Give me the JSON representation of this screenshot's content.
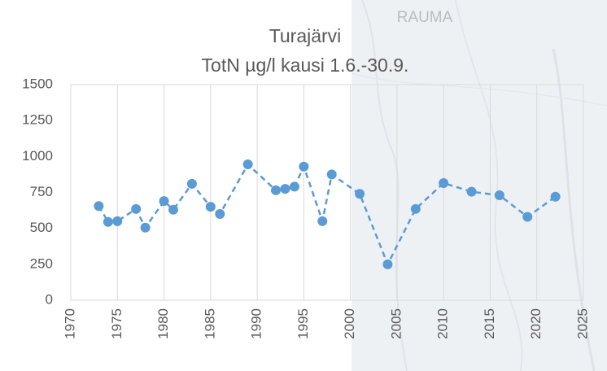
{
  "map": {
    "label": "RAUMA"
  },
  "chart_data": {
    "type": "line",
    "title": "Turajärvi",
    "subtitle": "TotN µg/l kausi 1.6.-30.9.",
    "x": [
      1973,
      1974,
      1975,
      1977,
      1978,
      1980,
      1981,
      1983,
      1985,
      1986,
      1989,
      1992,
      1993,
      1994,
      1995,
      1997,
      1998,
      2001,
      2004,
      2007,
      2010,
      2013,
      2016,
      2019,
      2022
    ],
    "series": [
      {
        "name": "TotN",
        "color": "#5b9bd5",
        "values": [
          655,
          545,
          550,
          635,
          505,
          690,
          630,
          810,
          650,
          600,
          945,
          765,
          775,
          790,
          930,
          550,
          875,
          740,
          250,
          635,
          815,
          755,
          730,
          580,
          720
        ]
      }
    ],
    "xlim": [
      1970,
      2025
    ],
    "xticks": [
      1970,
      1975,
      1980,
      1985,
      1990,
      1995,
      2000,
      2005,
      2010,
      2015,
      2020,
      2025
    ],
    "ylim": [
      0,
      1500
    ],
    "yticks": [
      0,
      250,
      500,
      750,
      1000,
      1250,
      1500
    ],
    "grid": "x",
    "line_style": "dashed"
  }
}
